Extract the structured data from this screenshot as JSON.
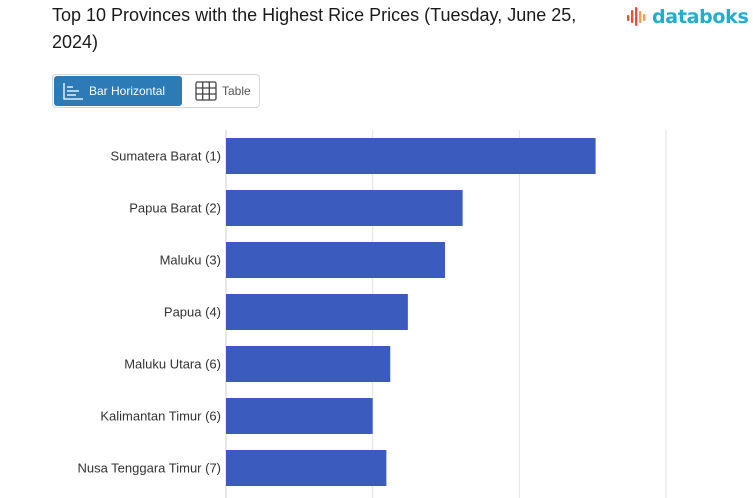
{
  "header": {
    "title": "Top 10 Provinces with the Highest Rice Prices (Tuesday, June 25, 2024)",
    "logo_text": "databoks"
  },
  "view_toggle": {
    "options": [
      {
        "label": "Bar Horizontal",
        "icon": "bar-horizontal-icon",
        "active": true
      },
      {
        "label": "Table",
        "icon": "table-icon",
        "active": false
      }
    ]
  },
  "colors": {
    "bar": "#3b5bbf",
    "toggle_active": "#2c7bb6",
    "logo": "#1faecf",
    "logo_mark": "#e8503a"
  },
  "chart_data": {
    "type": "bar",
    "orientation": "horizontal",
    "categories": [
      "Sumatera Barat (1)",
      "Papua Barat (2)",
      "Maluku (3)",
      "Papua (4)",
      "Maluku Utara (6)",
      "Kalimantan Timur (6)",
      "Nusa Tenggara Timur (7)"
    ],
    "values": [
      18.9,
      12.1,
      11.2,
      9.3,
      8.4,
      7.5,
      8.2
    ],
    "xlim": [
      0,
      22.5
    ],
    "grid": true,
    "legend": "none"
  }
}
